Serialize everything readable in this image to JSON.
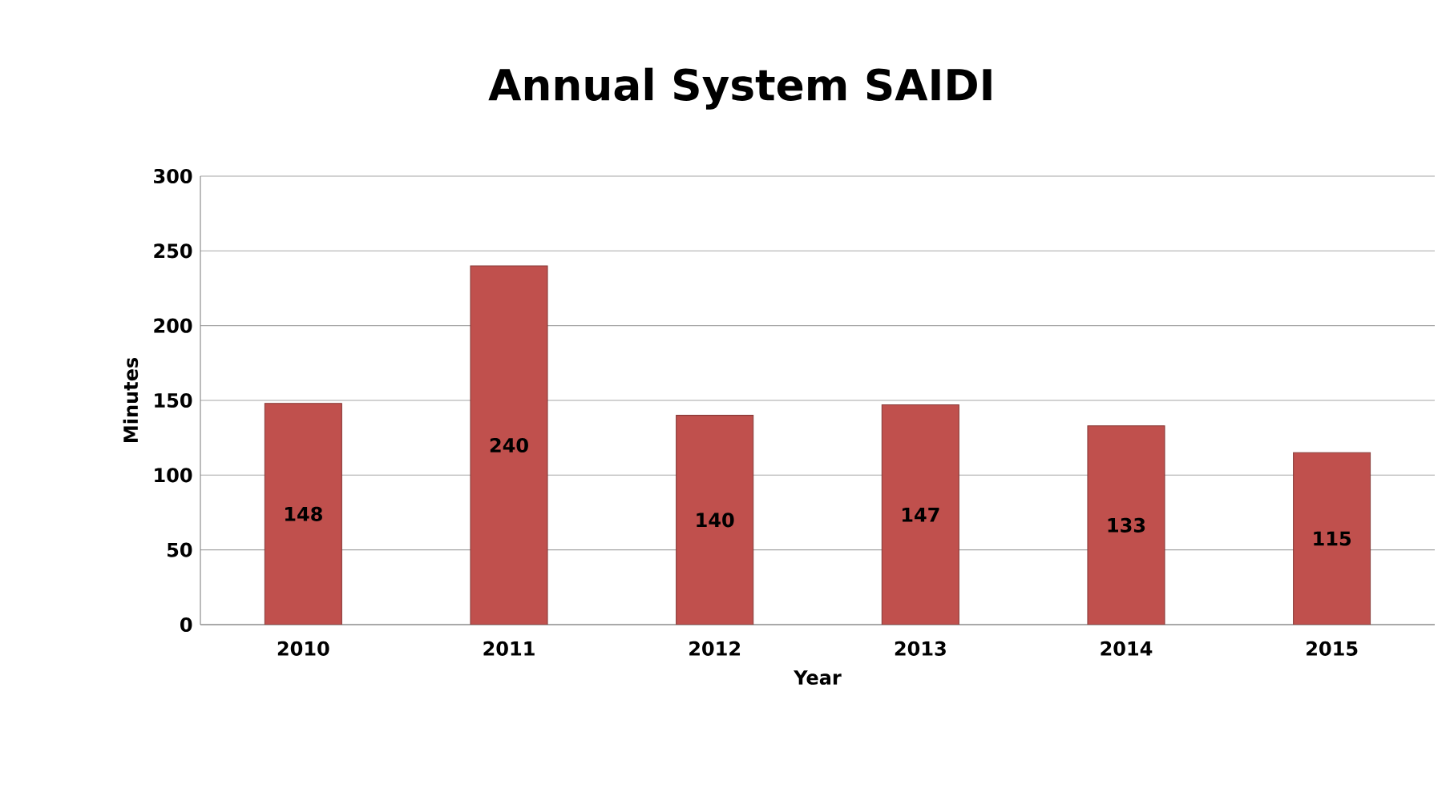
{
  "chart_data": {
    "type": "bar",
    "title": "Annual System SAIDI",
    "xlabel": "Year",
    "ylabel": "Minutes",
    "categories": [
      "2010",
      "2011",
      "2012",
      "2013",
      "2014",
      "2015"
    ],
    "values": [
      148,
      240,
      140,
      147,
      133,
      115
    ],
    "color": "#c0504d",
    "ylim": [
      0,
      300
    ],
    "yticks": [
      0,
      50,
      100,
      150,
      200,
      250,
      300
    ],
    "grid": "y",
    "data_labels": true
  }
}
